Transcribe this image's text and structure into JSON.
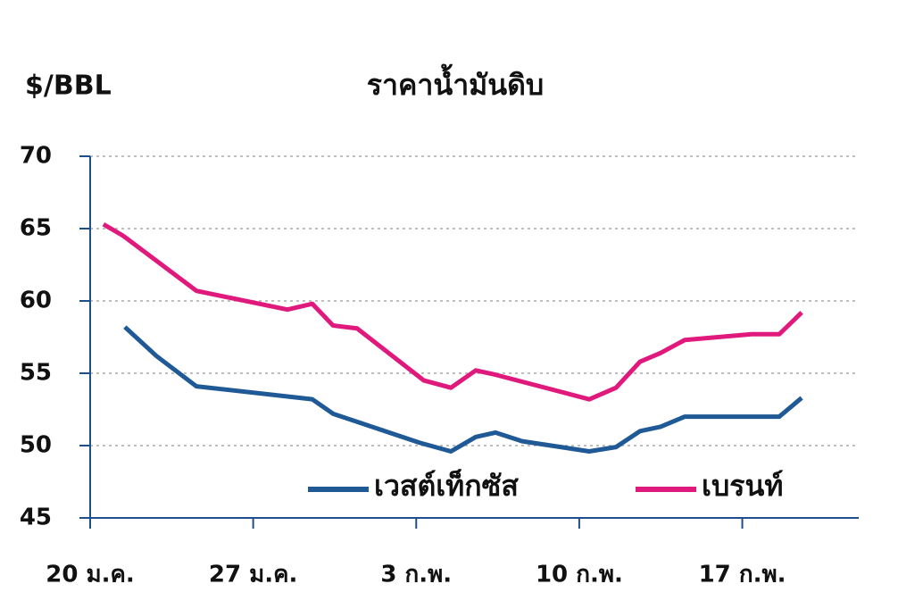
{
  "chart_data": {
    "type": "line",
    "title": "ราคาน้ำมันดิบ",
    "y_label": "$/BBL",
    "xlim": [
      0,
      33
    ],
    "xticks": [
      {
        "value": 0,
        "label": "20 ม.ค."
      },
      {
        "value": 7,
        "label": "27 ม.ค."
      },
      {
        "value": 14,
        "label": "3 ก.พ."
      },
      {
        "value": 21,
        "label": "10 ก.พ."
      },
      {
        "value": 28,
        "label": "17 ก.พ."
      }
    ],
    "ylim": [
      45,
      70
    ],
    "yticks": [
      45,
      50,
      55,
      60,
      65,
      70
    ],
    "grid": true,
    "legend": "lower right",
    "series": [
      {
        "name": "เวสต์เท็กซัส",
        "color": "#1f5a96",
        "x": [
          1.49,
          2.84,
          4.56,
          9.54,
          10.43,
          14.14,
          15.49,
          16.56,
          17.4,
          18.55,
          21.43,
          22.58,
          23.61,
          24.49,
          25.53,
          29.59,
          30.55
        ],
        "values": [
          58.2,
          56.2,
          54.1,
          53.2,
          52.2,
          50.2,
          49.6,
          50.6,
          50.9,
          50.3,
          49.6,
          49.9,
          51.0,
          51.3,
          52.0,
          52.0,
          53.3
        ]
      },
      {
        "name": "เบรนท์",
        "color": "#e0197d",
        "x": [
          0.57,
          1.42,
          4.56,
          8.47,
          9.54,
          10.43,
          11.46,
          14.33,
          15.49,
          16.56,
          17.4,
          21.43,
          22.58,
          23.61,
          24.49,
          25.53,
          28.4,
          29.59,
          30.55
        ],
        "values": [
          65.3,
          64.5,
          60.7,
          59.4,
          59.8,
          58.3,
          58.1,
          54.5,
          54.0,
          55.2,
          54.9,
          53.2,
          54.0,
          55.8,
          56.4,
          57.3,
          57.7,
          57.7,
          59.2
        ]
      }
    ]
  }
}
